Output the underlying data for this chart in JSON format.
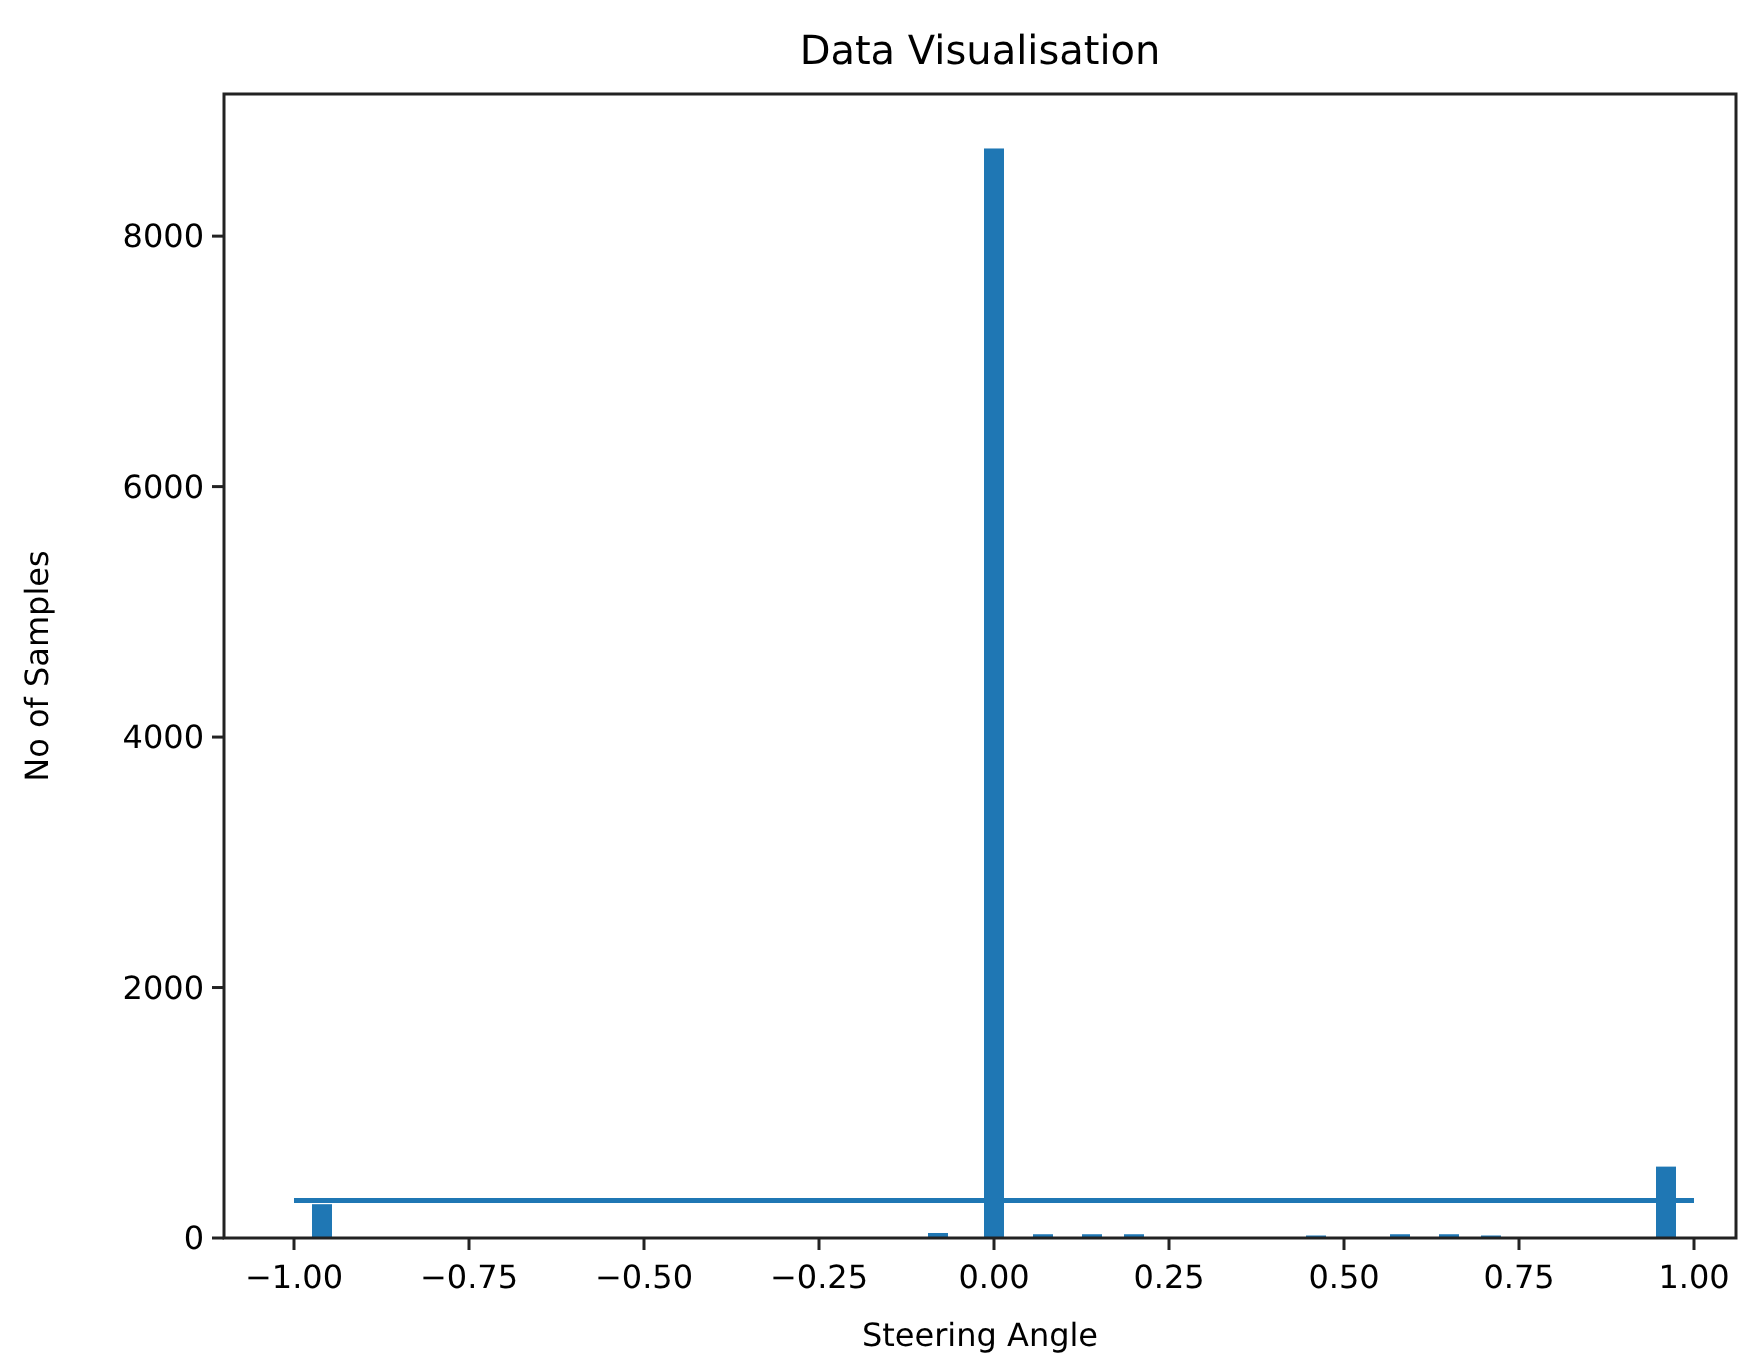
{
  "chart_data": {
    "type": "bar",
    "title": "Data Visualisation",
    "xlabel": "Steering Angle",
    "ylabel": "No of Samples",
    "xlim": [
      -1.1,
      1.06
    ],
    "xticks": [
      {
        "value": -1,
        "label": "−1.00"
      },
      {
        "value": -0.75,
        "label": "−0.75"
      },
      {
        "value": -0.5,
        "label": "−0.50"
      },
      {
        "value": -0.25,
        "label": "−0.25"
      },
      {
        "value": 0,
        "label": "0.00"
      },
      {
        "value": 0.25,
        "label": "0.25"
      },
      {
        "value": 0.5,
        "label": "0.50"
      },
      {
        "value": 0.75,
        "label": "0.75"
      },
      {
        "value": 1,
        "label": "1.00"
      }
    ],
    "ylim": [
      0,
      9135
    ],
    "yticks": [
      0,
      2000,
      4000,
      6000,
      8000
    ],
    "series": [
      {
        "color": "#1f77b4",
        "x": [
          -0.96,
          -0.08,
          0,
          0.07,
          0.14,
          0.2,
          0.46,
          0.58,
          0.65,
          0.71,
          0.96
        ],
        "values": [
          270,
          40,
          8700,
          30,
          30,
          30,
          20,
          30,
          30,
          20,
          570
        ]
      },
      {
        "type": "line",
        "color": "#1f77b4",
        "x": [
          -1,
          1
        ],
        "values": [
          300,
          300
        ]
      }
    ]
  }
}
